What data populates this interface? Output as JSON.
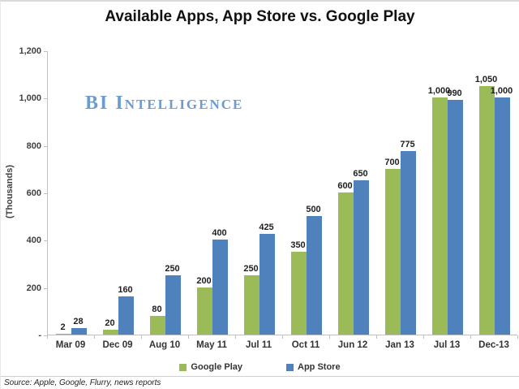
{
  "page": {
    "title": "Available Apps, App Store vs. Google Play",
    "watermark": "BI Intelligence",
    "source": "Source: Apple, Google, Flurry, news reports"
  },
  "legend": {
    "items": [
      {
        "label": "Google Play",
        "color": "#9bbb59"
      },
      {
        "label": "App Store",
        "color": "#4f81bd"
      }
    ]
  },
  "chart_data": {
    "type": "bar",
    "title": "Available Apps, App Store vs. Google Play",
    "xlabel": "",
    "ylabel": "(Thousands)",
    "ylim": [
      0,
      1200
    ],
    "ytick_interval": 200,
    "ytick_labels_top_to_bottom": [
      "1,200",
      "1,000",
      "800",
      "600",
      "400",
      "200",
      "-"
    ],
    "grid": false,
    "legend_position": "bottom",
    "categories": [
      "Mar 09",
      "Dec 09",
      "Aug 10",
      "May 11",
      "Jul 11",
      "Oct 11",
      "Jun 12",
      "Jan 13",
      "Jul 13",
      "Dec-13"
    ],
    "series": [
      {
        "name": "Google Play",
        "color": "#9bbb59",
        "values": [
          2,
          20,
          80,
          200,
          250,
          350,
          600,
          700,
          1000,
          1050
        ],
        "labels": [
          "2",
          "20",
          "80",
          "200",
          "250",
          "350",
          "600",
          "700",
          "1,000",
          "1,050"
        ]
      },
      {
        "name": "App Store",
        "color": "#4f81bd",
        "values": [
          28,
          160,
          250,
          400,
          425,
          500,
          650,
          775,
          990,
          1000
        ],
        "labels": [
          "28",
          "160",
          "250",
          "400",
          "425",
          "500",
          "650",
          "775",
          "990",
          "1,000"
        ]
      }
    ]
  }
}
